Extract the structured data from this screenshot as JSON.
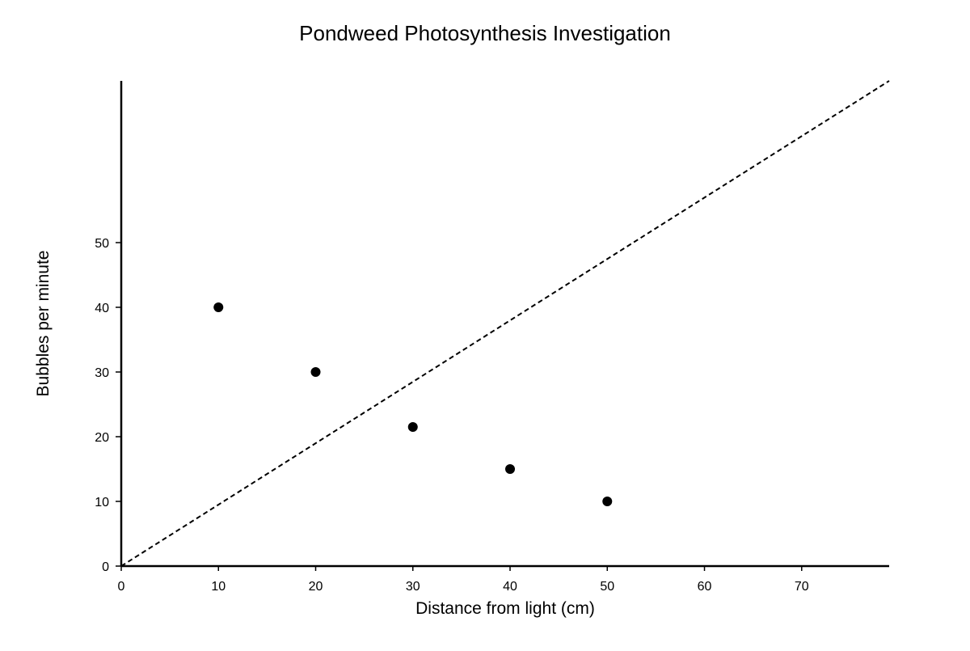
{
  "chart_data": {
    "type": "scatter",
    "title": "Pondweed Photosynthesis Investigation",
    "xlabel": "Distance from light (cm)",
    "ylabel": "Bubbles per minute",
    "xlim": [
      0,
      79
    ],
    "ylim": [
      0,
      75
    ],
    "x_ticks": [
      0,
      10,
      20,
      30,
      40,
      50,
      60,
      70
    ],
    "y_ticks": [
      0,
      10,
      20,
      30,
      40,
      50
    ],
    "grid": false,
    "series": [
      {
        "points": [
          {
            "x": 10,
            "y": 40
          },
          {
            "x": 20,
            "y": 30
          },
          {
            "x": 30,
            "y": 21.5
          },
          {
            "x": 40,
            "y": 15
          },
          {
            "x": 50,
            "y": 10
          }
        ],
        "color": "#000000"
      }
    ],
    "reference_line": {
      "style": "dashed",
      "from": {
        "x": 0,
        "y": 0
      },
      "to": {
        "x": 79,
        "y": 75
      },
      "color": "#000000"
    }
  }
}
